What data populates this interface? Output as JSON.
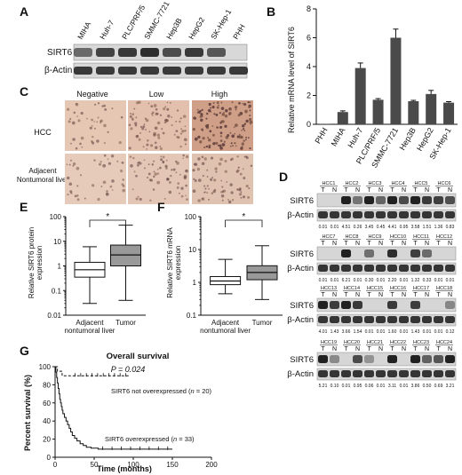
{
  "panels": {
    "A": {
      "label": "A",
      "lanes": [
        "MIHA",
        "Huh-7",
        "PLC/PRF/5",
        "SMMC-7721",
        "Hep3B",
        "HepG2",
        "SK-Hep-1",
        "PHH"
      ],
      "rows": [
        "SIRT6",
        "β-Actin"
      ]
    },
    "B": {
      "label": "B",
      "chart_data": {
        "type": "bar",
        "categories": [
          "PHH",
          "MIHA",
          "Huh-7",
          "PLC/PRF/5",
          "SMMC-7721",
          "Hep3B",
          "HepG2",
          "SK-Hep-1"
        ],
        "values": [
          0.02,
          0.85,
          3.9,
          1.7,
          6.0,
          1.6,
          2.1,
          1.5
        ],
        "errors": [
          0.0,
          0.08,
          0.35,
          0.08,
          0.6,
          0.06,
          0.25,
          0.07
        ],
        "ylabel": "Relative mRNA level of SIRT6",
        "ylim": [
          0,
          8
        ],
        "yticks": [
          0,
          2,
          4,
          6,
          8
        ]
      }
    },
    "C": {
      "label": "C",
      "columns": [
        "Negative",
        "Low",
        "High"
      ],
      "rows": [
        "HCC",
        "Adjacent Nontumoral liver"
      ],
      "row_lines": [
        [
          "HCC"
        ],
        [
          "Adjacent",
          "Nontumoral liver"
        ]
      ]
    },
    "D": {
      "label": "D",
      "rows": [
        "SIRT6",
        "β-Actin"
      ],
      "blocks": [
        {
          "cases": [
            "HCC1",
            "HCC2",
            "HCC3",
            "HCC4",
            "HCC5",
            "HCC6"
          ],
          "values": [
            "0.01",
            "0.01",
            "4.51",
            "0.26",
            "3.45",
            "0.45",
            "4.41",
            "0.95",
            "3.58",
            "1.51",
            "1.36",
            "0.83"
          ]
        },
        {
          "cases": [
            "HCC7",
            "HCC8",
            "HCC9",
            "HCC10",
            "HCC11",
            "HCC12"
          ],
          "values": [
            "0.01",
            "0.01",
            "6.21",
            "0.01",
            "0.30",
            "0.01",
            "2.20",
            "0.01",
            "1.32",
            "0.33",
            "0.01",
            "0.01"
          ]
        },
        {
          "cases": [
            "HCC13",
            "HCC14",
            "HCC15",
            "HCC16",
            "HCC17",
            "HCC18"
          ],
          "values": [
            "4.01",
            "1.43",
            "3.66",
            "1.54",
            "0.01",
            "0.01",
            "1.60",
            "0.01",
            "1.43",
            "0.01",
            "0.01",
            "0.12"
          ]
        },
        {
          "cases": [
            "HCC19",
            "HCC20",
            "HCC21",
            "HCC22",
            "HCC23",
            "HCC24"
          ],
          "values": [
            "5.21",
            "0.10",
            "0.01",
            "0.95",
            "0.06",
            "0.01",
            "3.11",
            "0.01",
            "3.86",
            "0.50",
            "0.69",
            "3.21"
          ]
        }
      ],
      "lane_labels": [
        "T",
        "N"
      ]
    },
    "E": {
      "label": "E",
      "chart_data": {
        "type": "box",
        "categories": [
          "Adjacent nontumoral liver",
          "Tumor"
        ],
        "category_lines": [
          [
            "Adjacent",
            "nontumoral liver"
          ],
          [
            "Tumor"
          ]
        ],
        "ylabel": "Relative SIRT6 protein expression",
        "ylabel_lines": [
          "Relative SIRT6 protein",
          "expression"
        ],
        "yscale": "log",
        "ylim": [
          0.01,
          100
        ],
        "yticks": [
          "0.01",
          "0.1",
          "1",
          "10",
          "100"
        ],
        "boxes": [
          {
            "min": 0.03,
            "q1": 0.35,
            "median": 0.7,
            "q3": 1.4,
            "max": 6
          },
          {
            "min": 0.04,
            "q1": 1,
            "median": 2.8,
            "q3": 7,
            "max": 45
          }
        ],
        "significance": "*"
      }
    },
    "F": {
      "label": "F",
      "chart_data": {
        "type": "box",
        "categories": [
          "Adjacent nontumoral liver",
          "Tumor"
        ],
        "category_lines": [
          [
            "Adjacent",
            "nontumoral liver"
          ],
          [
            "Tumor"
          ]
        ],
        "ylabel": "Relative SIRT6 mRNA expression",
        "ylabel_lines": [
          "Relative SIRT6 mRNA",
          "expression"
        ],
        "yscale": "log",
        "ylim": [
          0.1,
          100
        ],
        "yticks": [
          "0.1",
          "1",
          "10",
          "100"
        ],
        "boxes": [
          {
            "min": 0.45,
            "q1": 0.85,
            "median": 1.1,
            "q3": 1.5,
            "max": 5
          },
          {
            "min": 0.3,
            "q1": 1.2,
            "median": 2.0,
            "q3": 3.2,
            "max": 13
          }
        ],
        "significance": "*"
      }
    },
    "G": {
      "label": "G",
      "chart_data": {
        "type": "line",
        "title": "Overall survival",
        "pvalue": "P = 0.024",
        "xlabel": "Time (months)",
        "ylabel": "Percent survival (%)",
        "xlim": [
          0,
          200
        ],
        "ylim": [
          0,
          100
        ],
        "xticks": [
          0,
          50,
          100,
          150,
          200
        ],
        "yticks": [
          0,
          20,
          40,
          60,
          80,
          100
        ],
        "series": [
          {
            "name": "SIRT6 not overexpressed (n = 20)",
            "style": "dashed",
            "x": [
              0,
              3,
              6,
              9,
              12,
              22,
              94
            ],
            "y": [
              100,
              95,
              95,
              90,
              90,
              90,
              90
            ]
          },
          {
            "name": "SIRT6 overexpressed (n = 33)",
            "style": "solid",
            "x": [
              0,
              1,
              2,
              3,
              4,
              5,
              6,
              7,
              8,
              9,
              10,
              12,
              14,
              16,
              18,
              20,
              22,
              25,
              28,
              32,
              36,
              40,
              46,
              55,
              150
            ],
            "y": [
              100,
              94,
              88,
              82,
              76,
              70,
              64,
              60,
              56,
              52,
              48,
              44,
              40,
              36,
              32,
              28,
              24,
              21,
              18,
              15,
              13,
              11,
              10,
              9,
              9
            ]
          }
        ],
        "series_labels": [
          {
            "prefix": "SIRT6 not overexpressed (",
            "n": "n",
            "suffix": " = 20)"
          },
          {
            "prefix": "SIRT6 overexpressed (",
            "n": "n",
            "suffix": " = 33)"
          }
        ]
      }
    }
  }
}
